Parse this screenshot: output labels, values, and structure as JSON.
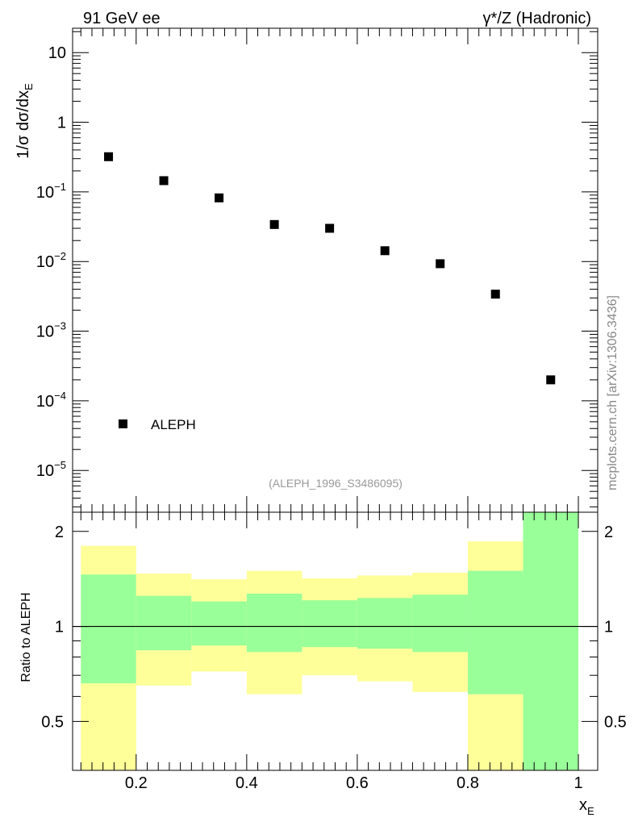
{
  "header": {
    "left_label": "91 GeV ee",
    "right_label": "γ*/Z (Hadronic)"
  },
  "side_label": "mcplots.cern.ch [arXiv:1306.3436]",
  "analysis_label": "(ALEPH_1996_S3486095)",
  "colors": {
    "band_outer": "#ffff99",
    "band_inner": "#99ff99",
    "marker": "#000000",
    "axis": "#000000",
    "analysis_label": "#999999",
    "side_label": "#888888"
  },
  "chart_data": [
    {
      "type": "scatter",
      "panel": "main",
      "ylabel_main": "1/σ dσ/dx",
      "ylabel_sub": "E",
      "yscale": "log",
      "xlim": [
        0.085,
        1.035
      ],
      "ylim_log10": [
        -5.6,
        1.35
      ],
      "yticks": [
        {
          "value": 10,
          "base": "10",
          "exp": ""
        },
        {
          "value": 1,
          "base": "1",
          "exp": ""
        },
        {
          "value": 0.1,
          "base": "10",
          "exp": "−1"
        },
        {
          "value": 0.01,
          "base": "10",
          "exp": "−2"
        },
        {
          "value": 0.001,
          "base": "10",
          "exp": "−3"
        },
        {
          "value": 0.0001,
          "base": "10",
          "exp": "−4"
        },
        {
          "value": 1e-05,
          "base": "10",
          "exp": "−5"
        }
      ],
      "series": [
        {
          "name": "ALEPH",
          "x": [
            0.15,
            0.25,
            0.35,
            0.45,
            0.55,
            0.65,
            0.75,
            0.85,
            0.95
          ],
          "y": [
            0.32,
            0.145,
            0.082,
            0.034,
            0.03,
            0.0143,
            0.0093,
            0.0034,
            0.0002
          ]
        }
      ],
      "legend": {
        "label": "ALEPH",
        "position": "bottom-left"
      }
    },
    {
      "type": "area",
      "panel": "ratio",
      "ylabel": "Ratio to ALEPH",
      "xlabel_main": "x",
      "xlabel_sub": "E",
      "ylim": [
        0.35,
        2.3
      ],
      "yticks": [
        0.5,
        1,
        2
      ],
      "ytick_labels": [
        "0.5",
        "1",
        "2"
      ],
      "xticks": [
        0.2,
        0.4,
        0.6,
        0.8,
        1.0
      ],
      "xtick_labels": [
        "0.2",
        "0.4",
        "0.6",
        "0.8",
        "1"
      ],
      "reference_line": 1,
      "bin_edges": [
        0.1,
        0.2,
        0.3,
        0.4,
        0.5,
        0.6,
        0.7,
        0.8,
        0.9,
        1.0
      ],
      "band_outer_upper": [
        1.8,
        1.47,
        1.41,
        1.5,
        1.42,
        1.45,
        1.48,
        1.86,
        2.3
      ],
      "band_outer_lower": [
        0.35,
        0.65,
        0.72,
        0.61,
        0.7,
        0.67,
        0.62,
        0.35,
        0.35
      ],
      "band_inner_upper": [
        1.46,
        1.25,
        1.2,
        1.27,
        1.21,
        1.23,
        1.26,
        1.5,
        2.3
      ],
      "band_inner_lower": [
        0.66,
        0.84,
        0.87,
        0.83,
        0.86,
        0.85,
        0.83,
        0.61,
        0.35
      ]
    }
  ]
}
